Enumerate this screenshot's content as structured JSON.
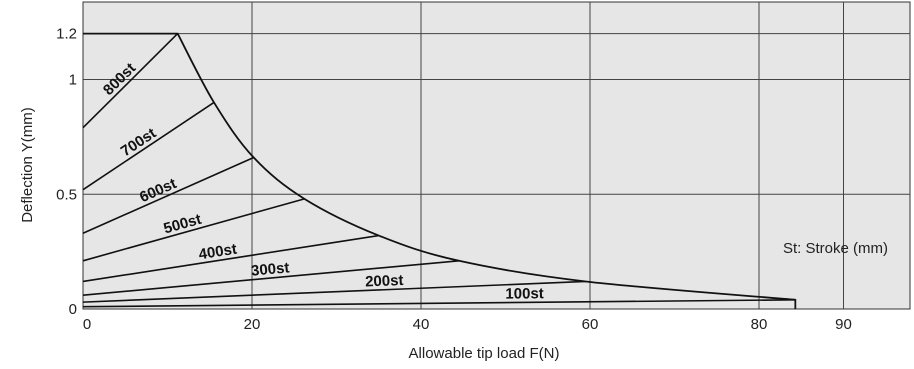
{
  "chart_data": {
    "type": "line",
    "title": "",
    "xlabel": "Allowable tip load  F(N)",
    "ylabel": "Deflection Y(mm)",
    "xlim": [
      0,
      98
    ],
    "ylim": [
      0,
      1.3
    ],
    "x_ticks": [
      {
        "value": 0,
        "label": "0"
      },
      {
        "value": 20,
        "label": "20"
      },
      {
        "value": 40,
        "label": "40"
      },
      {
        "value": 60,
        "label": "60"
      },
      {
        "value": 80,
        "label": "80"
      },
      {
        "value": 90,
        "label": "90"
      }
    ],
    "y_ticks": [
      {
        "value": 0,
        "label": "0"
      },
      {
        "value": 0.5,
        "label": "0.5"
      },
      {
        "value": 1.0,
        "label": "1"
      },
      {
        "value": 1.2,
        "label": "1.2"
      }
    ],
    "grid": true,
    "annotation": "St: Stroke (mm)",
    "envelope": [
      {
        "x": 0,
        "y": 1.2
      },
      {
        "x": 11.2,
        "y": 1.2
      },
      {
        "x": 15.5,
        "y": 0.9
      },
      {
        "x": 20.2,
        "y": 0.66
      },
      {
        "x": 26.2,
        "y": 0.48
      },
      {
        "x": 35,
        "y": 0.32
      },
      {
        "x": 44.5,
        "y": 0.21
      },
      {
        "x": 59.5,
        "y": 0.12
      },
      {
        "x": 84.3,
        "y": 0.04
      },
      {
        "x": 84.3,
        "y": 0
      }
    ],
    "series": [
      {
        "name": "800st",
        "x": [
          0,
          11.2
        ],
        "y": [
          0.79,
          1.2
        ]
      },
      {
        "name": "700st",
        "x": [
          0,
          15.5
        ],
        "y": [
          0.52,
          0.9
        ]
      },
      {
        "name": "600st",
        "x": [
          0,
          20.2
        ],
        "y": [
          0.33,
          0.66
        ]
      },
      {
        "name": "500st",
        "x": [
          0,
          26.2
        ],
        "y": [
          0.21,
          0.48
        ]
      },
      {
        "name": "400st",
        "x": [
          0,
          35
        ],
        "y": [
          0.12,
          0.32
        ]
      },
      {
        "name": "300st",
        "x": [
          0,
          44.5
        ],
        "y": [
          0.06,
          0.21
        ]
      },
      {
        "name": "200st",
        "x": [
          0,
          59.5
        ],
        "y": [
          0.03,
          0.12
        ]
      },
      {
        "name": "100st",
        "x": [
          0,
          84.3
        ],
        "y": [
          0.01,
          0.04
        ]
      }
    ]
  }
}
